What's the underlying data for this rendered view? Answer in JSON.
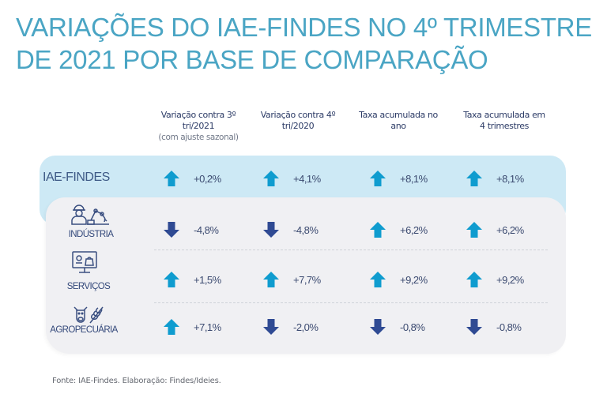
{
  "title": {
    "line1": "VARIAÇÕES DO IAE-FINDES NO 4º TRIMESTRE",
    "line2": "DE 2021 POR BASE DE COMPARAÇÃO"
  },
  "columns": [
    {
      "line1": "Variação contra 3º",
      "line2": "tri/2021",
      "sub": "(com ajuste sazonal)"
    },
    {
      "line1": "Variação contra 4º",
      "line2": "tri/2020",
      "sub": ""
    },
    {
      "line1": "Taxa acumulada no",
      "line2": "ano",
      "sub": ""
    },
    {
      "line1": "Taxa acumulada em",
      "line2": "4 trimestres",
      "sub": ""
    }
  ],
  "rows": [
    {
      "label": "IAE-FINDES",
      "icon": "none",
      "values": [
        {
          "text": "+0,2%",
          "direction": "up"
        },
        {
          "text": "+4,1%",
          "direction": "up"
        },
        {
          "text": "+8,1%",
          "direction": "up"
        },
        {
          "text": "+8,1%",
          "direction": "up"
        }
      ]
    },
    {
      "label": "INDÚSTRIA",
      "icon": "worker-robot-arm-icon",
      "values": [
        {
          "text": "-4,8%",
          "direction": "down"
        },
        {
          "text": "-4,8%",
          "direction": "down"
        },
        {
          "text": "+6,2%",
          "direction": "up"
        },
        {
          "text": "+6,2%",
          "direction": "up"
        }
      ]
    },
    {
      "label": "SERVIÇOS",
      "icon": "monitor-shopping-icon",
      "values": [
        {
          "text": "+1,5%",
          "direction": "up"
        },
        {
          "text": "+7,7%",
          "direction": "up"
        },
        {
          "text": "+9,2%",
          "direction": "up"
        },
        {
          "text": "+9,2%",
          "direction": "up"
        }
      ]
    },
    {
      "label": "AGROPECUÁRIA",
      "icon": "cow-wheat-icon",
      "values": [
        {
          "text": "+7,1%",
          "direction": "up"
        },
        {
          "text": "-2,0%",
          "direction": "down"
        },
        {
          "text": "-0,8%",
          "direction": "down"
        },
        {
          "text": "-0,8%",
          "direction": "down"
        }
      ]
    }
  ],
  "colors": {
    "up": "#0f9ccf",
    "down": "#2f4a93",
    "title": "#4aa5c4",
    "highlight_card": "#cde9f5",
    "body_card": "#f0f0f3"
  },
  "source": "Fonte: IAE-Findes. Elaboração: Findes/Ideies."
}
